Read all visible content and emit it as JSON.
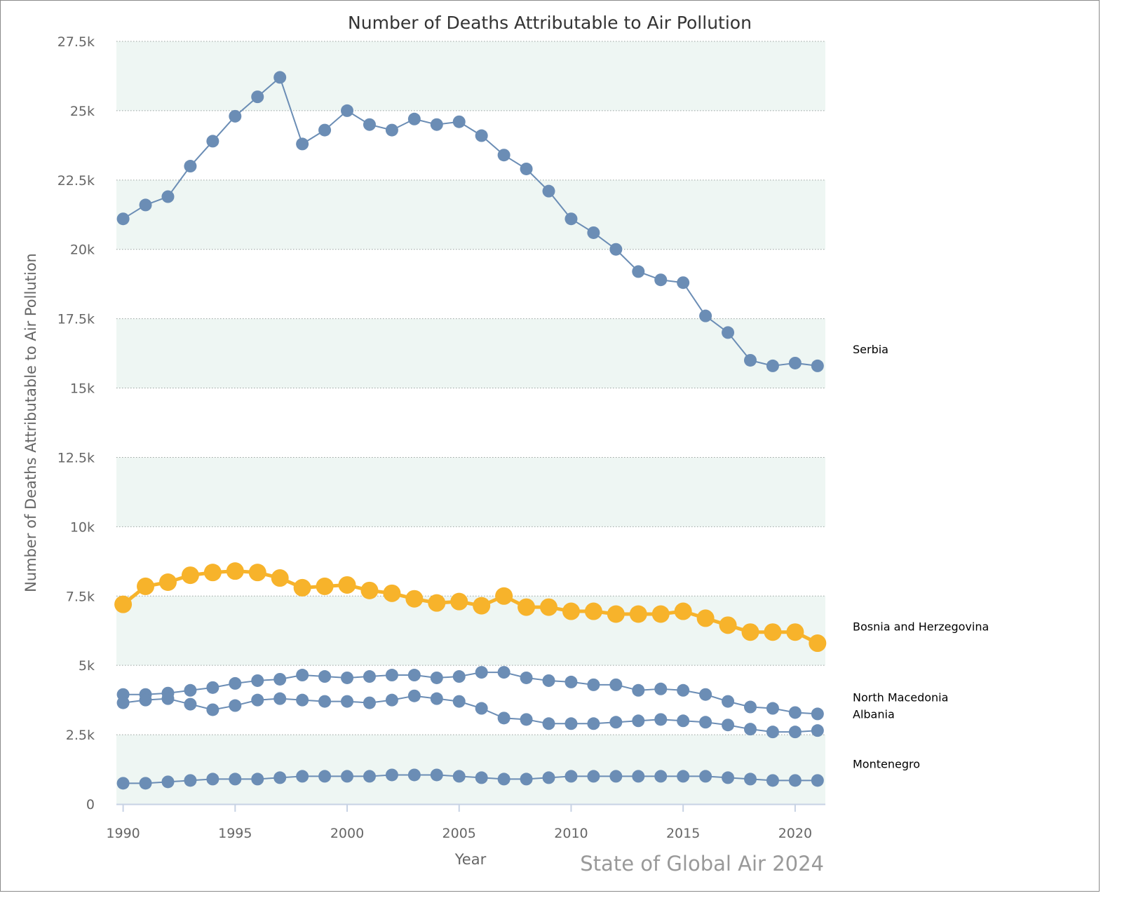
{
  "chart_data": {
    "type": "line",
    "title": "Number of Deaths Attributable to Air Pollution",
    "xlabel": "Year",
    "ylabel": "Number of Deaths Attributable to Air Pollution",
    "credit": "State of Global Air 2024",
    "x": [
      1990,
      1991,
      1992,
      1993,
      1994,
      1995,
      1996,
      1997,
      1998,
      1999,
      2000,
      2001,
      2002,
      2003,
      2004,
      2005,
      2006,
      2007,
      2008,
      2009,
      2010,
      2011,
      2012,
      2013,
      2014,
      2015,
      2016,
      2017,
      2018,
      2019,
      2020,
      2021
    ],
    "xlim": [
      1989.7,
      2021.35
    ],
    "ylim": [
      0,
      27500
    ],
    "x_ticks": [
      1990,
      1995,
      2000,
      2005,
      2010,
      2015,
      2020
    ],
    "x_tick_labels": [
      "1990",
      "1995",
      "2000",
      "2005",
      "2010",
      "2015",
      "2020"
    ],
    "y_ticks": [
      0,
      2500,
      5000,
      7500,
      10000,
      12500,
      15000,
      17500,
      20000,
      22500,
      25000,
      27500
    ],
    "y_tick_labels": [
      "0",
      "2.5k",
      "5k",
      "7.5k",
      "10k",
      "12.5k",
      "15k",
      "17.5k",
      "20k",
      "22.5k",
      "25k",
      "27.5k"
    ],
    "grid": true,
    "legend": "end-of-line labels, right",
    "series": [
      {
        "name": "Serbia",
        "highlight": false,
        "color": "#6b8db5",
        "values": [
          21100,
          21600,
          21900,
          23000,
          23900,
          24800,
          25500,
          26200,
          23800,
          24300,
          25000,
          24500,
          24300,
          24700,
          24500,
          24600,
          24100,
          23400,
          22900,
          22100,
          21100,
          20600,
          20000,
          19200,
          18900,
          18800,
          17600,
          17000,
          16000,
          15800,
          15900,
          15800
        ]
      },
      {
        "name": "Bosnia and Herzegovina",
        "highlight": true,
        "color": "#f7b32b",
        "values": [
          7200,
          7850,
          8000,
          8250,
          8350,
          8400,
          8350,
          8150,
          7800,
          7850,
          7900,
          7700,
          7600,
          7400,
          7250,
          7300,
          7150,
          7500,
          7100,
          7100,
          6950,
          6950,
          6850,
          6850,
          6850,
          6950,
          6700,
          6450,
          6200,
          6200,
          6200,
          5800
        ]
      },
      {
        "name": "North Macedonia",
        "highlight": false,
        "color": "#6b8db5",
        "values": [
          3950,
          3950,
          4000,
          4100,
          4200,
          4350,
          4450,
          4500,
          4650,
          4600,
          4550,
          4600,
          4650,
          4650,
          4550,
          4600,
          4750,
          4750,
          4550,
          4450,
          4400,
          4300,
          4300,
          4100,
          4150,
          4100,
          3950,
          3700,
          3500,
          3450,
          3300,
          3250
        ]
      },
      {
        "name": "Albania",
        "highlight": false,
        "color": "#6b8db5",
        "values": [
          3650,
          3750,
          3800,
          3600,
          3400,
          3550,
          3750,
          3800,
          3750,
          3700,
          3700,
          3650,
          3750,
          3900,
          3800,
          3700,
          3450,
          3100,
          3050,
          2900,
          2900,
          2900,
          2950,
          3000,
          3050,
          3000,
          2950,
          2850,
          2700,
          2600,
          2600,
          2650
        ]
      },
      {
        "name": "Montenegro",
        "highlight": false,
        "color": "#6b8db5",
        "values": [
          750,
          750,
          800,
          850,
          900,
          900,
          900,
          950,
          1000,
          1000,
          1000,
          1000,
          1050,
          1050,
          1050,
          1000,
          950,
          900,
          900,
          950,
          1000,
          1000,
          1000,
          1000,
          1000,
          1000,
          1000,
          950,
          900,
          850,
          850,
          850
        ]
      }
    ]
  }
}
